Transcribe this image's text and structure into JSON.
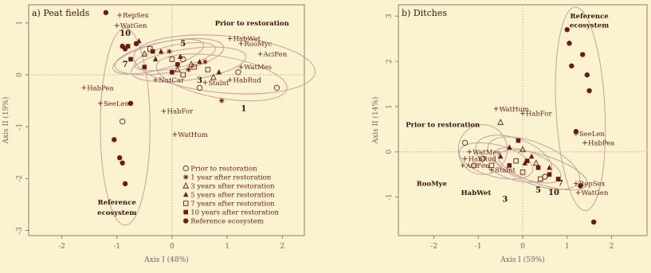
{
  "palette": {
    "background": "#fbf3d0",
    "ink": "#6a1a1a",
    "ellipse": "#c4a0a0",
    "axis": "#9a7474",
    "refline": "#b9a9a9"
  },
  "chart_data": [
    {
      "type": "scatter",
      "panel_label": "a) Peat fields",
      "xlabel": "Axis I (48%)",
      "ylabel": "Axis II (19%)",
      "xlim": [
        -2.6,
        2.4
      ],
      "ylim": [
        -3.1,
        1.35
      ],
      "xticks": [
        -2,
        -1,
        0,
        1,
        2
      ],
      "yticks": [
        1,
        0,
        -1,
        -2,
        -3
      ],
      "grid": false,
      "legend_position": "bottom-right",
      "legend": [
        {
          "symbol": "open-circle",
          "label": "Prior to restoration"
        },
        {
          "symbol": "asterisk",
          "label": "1 year after restoration"
        },
        {
          "symbol": "open-triangle",
          "label": "3 years after restoration"
        },
        {
          "symbol": "filled-triangle",
          "label": "5 years after restoration"
        },
        {
          "symbol": "open-square",
          "label": "7 years after restoration"
        },
        {
          "symbol": "filled-square",
          "label": "10 years after restoration"
        },
        {
          "symbol": "filled-circle",
          "label": "Reference ecosystem"
        }
      ],
      "series": [
        {
          "symbol": "open-circle",
          "points": [
            [
              0.2,
              0.3
            ],
            [
              1.2,
              0.05
            ],
            [
              1.9,
              -0.25
            ],
            [
              0.5,
              -0.25
            ],
            [
              -0.9,
              -0.9
            ]
          ]
        },
        {
          "symbol": "asterisk",
          "points": [
            [
              -0.05,
              0.45
            ],
            [
              0.6,
              0.25
            ],
            [
              0.9,
              -0.5
            ],
            [
              0.3,
              0.1
            ]
          ]
        },
        {
          "symbol": "open-triangle",
          "points": [
            [
              0.35,
              0.2
            ],
            [
              0.75,
              -0.05
            ],
            [
              -0.5,
              0.4
            ],
            [
              0.1,
              0.1
            ]
          ]
        },
        {
          "symbol": "filled-triangle",
          "points": [
            [
              -0.6,
              0.65
            ],
            [
              -0.2,
              0.45
            ],
            [
              0.15,
              0.35
            ],
            [
              0.5,
              0.25
            ],
            [
              0.85,
              0.05
            ],
            [
              -0.3,
              0.3
            ]
          ]
        },
        {
          "symbol": "open-square",
          "points": [
            [
              -0.4,
              0.5
            ],
            [
              0.0,
              0.3
            ],
            [
              0.4,
              0.15
            ],
            [
              0.65,
              0.1
            ],
            [
              0.2,
              0.0
            ]
          ]
        },
        {
          "symbol": "filled-square",
          "points": [
            [
              -0.8,
              0.55
            ],
            [
              -0.75,
              0.3
            ],
            [
              -0.35,
              0.45
            ],
            [
              0.1,
              0.2
            ],
            [
              -0.5,
              0.15
            ],
            [
              0.0,
              0.05
            ]
          ]
        },
        {
          "symbol": "filled-circle",
          "points": [
            [
              -1.2,
              1.2
            ],
            [
              -0.9,
              0.55
            ],
            [
              -1.05,
              -1.25
            ],
            [
              -0.95,
              -1.6
            ],
            [
              -0.85,
              -2.1
            ],
            [
              -0.9,
              -1.7
            ],
            [
              -0.75,
              -0.55
            ],
            [
              -0.85,
              0.5
            ],
            [
              -0.65,
              0.6
            ]
          ]
        }
      ],
      "species": [
        {
          "label": "RepSex",
          "x": -0.95,
          "y": 1.15
        },
        {
          "label": "WatGen",
          "x": -1.0,
          "y": 0.95
        },
        {
          "label": "HabWet",
          "x": 1.05,
          "y": 0.7
        },
        {
          "label": "RooMyc",
          "x": 1.25,
          "y": 0.6
        },
        {
          "label": "AciFen",
          "x": 1.6,
          "y": 0.4
        },
        {
          "label": "WatMes",
          "x": 1.25,
          "y": 0.15
        },
        {
          "label": "HabRud",
          "x": 1.05,
          "y": -0.1
        },
        {
          "label": "NutCar",
          "x": -0.3,
          "y": -0.1
        },
        {
          "label": "Stalnt",
          "x": 0.6,
          "y": -0.15
        },
        {
          "label": "HabPea",
          "x": -1.6,
          "y": -0.25
        },
        {
          "label": "SeeLen",
          "x": -1.3,
          "y": -0.55
        },
        {
          "label": "HabFor",
          "x": -0.15,
          "y": -0.7
        },
        {
          "label": "WatHum",
          "x": 0.05,
          "y": -1.15
        }
      ],
      "time_labels": [
        {
          "label": "10",
          "x": -0.85,
          "y": 0.75
        },
        {
          "label": "5",
          "x": 0.2,
          "y": 0.55
        },
        {
          "label": "7",
          "x": -0.85,
          "y": 0.15
        },
        {
          "label": "3",
          "x": 0.5,
          "y": -0.15
        },
        {
          "label": "1",
          "x": 1.3,
          "y": -0.7
        }
      ],
      "annotations": [
        {
          "label": "Prior to restoration",
          "x": 1.45,
          "y": 0.95
        },
        {
          "label": "Reference",
          "x": -1.0,
          "y": -2.5
        },
        {
          "label": "ecosystem",
          "x": -1.0,
          "y": -2.7
        }
      ],
      "ellipses": [
        {
          "cx": 0.95,
          "cy": 0.2,
          "rx": 1.65,
          "ry": 0.55,
          "rotate": 5
        },
        {
          "cx": 0.9,
          "cy": -0.05,
          "rx": 1.2,
          "ry": 0.4,
          "rotate": 10
        },
        {
          "cx": 0.3,
          "cy": 0.2,
          "rx": 1.05,
          "ry": 0.3,
          "rotate": -8
        },
        {
          "cx": -0.05,
          "cy": 0.35,
          "rx": 1.0,
          "ry": 0.3,
          "rotate": -10
        },
        {
          "cx": 0.05,
          "cy": 0.35,
          "rx": 0.75,
          "ry": 0.22,
          "rotate": -12
        },
        {
          "cx": -0.25,
          "cy": 0.35,
          "rx": 0.85,
          "ry": 0.25,
          "rotate": -15
        },
        {
          "cx": -0.85,
          "cy": -1.0,
          "rx": 0.45,
          "ry": 1.9,
          "rotate": 0
        }
      ]
    },
    {
      "type": "scatter",
      "panel_label": "b) Ditches",
      "xlabel": "Axis I (59%)",
      "ylabel": "Axis II (14%)",
      "xlim": [
        -2.8,
        2.8
      ],
      "ylim": [
        -1.85,
        3.25
      ],
      "xticks": [
        -2,
        -1,
        0,
        1,
        2
      ],
      "yticks": [
        3,
        2,
        1,
        0,
        -1
      ],
      "grid": false,
      "series": [
        {
          "symbol": "open-circle",
          "points": [
            [
              -1.3,
              0.2
            ],
            [
              -1.1,
              -0.3
            ],
            [
              0.5,
              -0.55
            ],
            [
              -0.9,
              -0.15
            ]
          ]
        },
        {
          "symbol": "open-triangle",
          "points": [
            [
              -0.5,
              0.65
            ],
            [
              0.0,
              0.05
            ],
            [
              0.3,
              -0.25
            ]
          ]
        },
        {
          "symbol": "filled-triangle",
          "points": [
            [
              -0.3,
              0.1
            ],
            [
              0.2,
              -0.1
            ],
            [
              0.6,
              -0.35
            ],
            [
              -0.5,
              -0.1
            ],
            [
              0.05,
              -0.25
            ]
          ]
        },
        {
          "symbol": "open-square",
          "points": [
            [
              -0.7,
              -0.3
            ],
            [
              0.0,
              -0.45
            ],
            [
              0.4,
              -0.6
            ],
            [
              -0.15,
              -0.2
            ]
          ]
        },
        {
          "symbol": "filled-square",
          "points": [
            [
              -0.1,
              0.25
            ],
            [
              0.1,
              -0.2
            ],
            [
              0.35,
              -0.35
            ],
            [
              0.6,
              -0.5
            ],
            [
              -0.3,
              -0.3
            ],
            [
              0.8,
              -0.6
            ]
          ]
        },
        {
          "symbol": "filled-circle",
          "points": [
            [
              1.0,
              2.7
            ],
            [
              1.35,
              2.15
            ],
            [
              1.1,
              1.9
            ],
            [
              1.45,
              1.7
            ],
            [
              1.5,
              1.35
            ],
            [
              1.2,
              0.45
            ],
            [
              1.3,
              -0.75
            ],
            [
              1.6,
              -1.55
            ],
            [
              1.05,
              2.4
            ]
          ]
        }
      ],
      "species": [
        {
          "label": "WatHum",
          "x": -0.6,
          "y": 0.95
        },
        {
          "label": "HabFor",
          "x": 0.0,
          "y": 0.85
        },
        {
          "label": "SeeLen",
          "x": 1.2,
          "y": 0.4
        },
        {
          "label": "HabPea",
          "x": 1.4,
          "y": 0.2
        },
        {
          "label": "WatMes",
          "x": -1.2,
          "y": 0.0
        },
        {
          "label": "HabRud",
          "x": -1.3,
          "y": -0.15
        },
        {
          "label": "AciFen",
          "x": -1.35,
          "y": -0.3
        },
        {
          "label": "Stalnt",
          "x": -0.7,
          "y": -0.4
        },
        {
          "label": "RepSex",
          "x": 1.2,
          "y": -0.7
        },
        {
          "label": "WatGen",
          "x": 1.25,
          "y": -0.9
        }
      ],
      "time_labels": [
        {
          "label": "5",
          "x": 0.35,
          "y": -0.9
        },
        {
          "label": "3",
          "x": -0.4,
          "y": -1.1
        },
        {
          "label": "10",
          "x": 0.7,
          "y": -0.95
        },
        {
          "label": "7",
          "x": 0.85,
          "y": -0.75
        }
      ],
      "annotations": [
        {
          "label": "Reference",
          "x": 1.5,
          "y": 2.95
        },
        {
          "label": "ecosystem",
          "x": 1.5,
          "y": 2.75
        },
        {
          "label": "Prior to restoration",
          "x": -1.8,
          "y": 0.55
        },
        {
          "label": "RooMye",
          "x": -2.05,
          "y": -0.75
        },
        {
          "label": "HabWet",
          "x": -1.05,
          "y": -0.95
        }
      ],
      "ellipses": [
        {
          "cx": 1.3,
          "cy": 0.95,
          "rx": 0.55,
          "ry": 2.25,
          "rotate": -3
        },
        {
          "cx": -0.9,
          "cy": 0.05,
          "rx": 0.55,
          "ry": 0.55,
          "rotate": 0
        },
        {
          "cx": -0.2,
          "cy": -0.15,
          "rx": 0.9,
          "ry": 0.45,
          "rotate": 20
        },
        {
          "cx": 0.25,
          "cy": -0.25,
          "rx": 1.1,
          "ry": 0.45,
          "rotate": 22
        },
        {
          "cx": 0.1,
          "cy": -0.3,
          "rx": 0.8,
          "ry": 0.3,
          "rotate": 20
        },
        {
          "cx": 0.45,
          "cy": -0.4,
          "rx": 1.05,
          "ry": 0.32,
          "rotate": 18
        },
        {
          "cx": -0.6,
          "cy": -0.2,
          "rx": 0.85,
          "ry": 0.35,
          "rotate": 15
        }
      ]
    }
  ]
}
